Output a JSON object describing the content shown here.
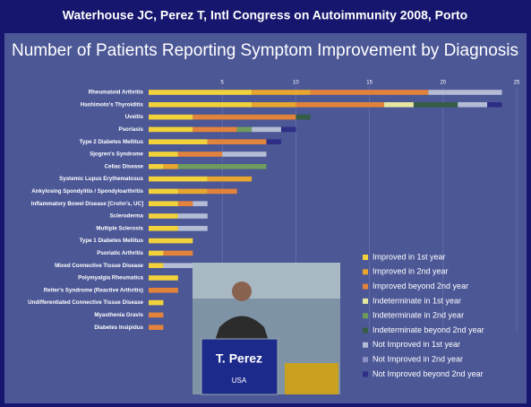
{
  "header": "Waterhouse JC, Perez T,   Intl Congress on Autoimmunity 2008, Porto",
  "chart_data": {
    "type": "bar",
    "orientation": "horizontal",
    "stacked": true,
    "title": "Number of Patients Reporting Symptom Improvement by Diagnosis",
    "categories": [
      "Rheumatoid Arthritis",
      "Hashimoto's Thyroiditis",
      "Uveitis",
      "Psoriasis",
      "Type 2 Diabetes Mellitus",
      "Sjogren's Syndrome",
      "Celiac Disease",
      "Systemic Lupus Erythematosus",
      "Ankylosing Spondylitis / Spondyloarthritis",
      "Inflammatory Bowel Disease [Crohn's, UC]",
      "Scleroderma",
      "Multiple Sclerosis",
      "Type 1 Diabetes Mellitus",
      "Psoriatic Arthritis",
      "Mixed Connective Tissue Disease",
      "Polymyalgia Rheumatica",
      "Reiter's Syndrome (Reactive Arthritis)",
      "Undifferentiated Connective Tissue Disease",
      "Myasthenia Gravis",
      "Diabetes Insipidus"
    ],
    "series": [
      {
        "name": "Improved in 1st year",
        "color": "#f2d23a",
        "values": [
          7,
          7,
          3,
          3,
          4,
          2,
          1,
          4,
          2,
          2,
          2,
          2,
          3,
          1,
          1,
          2,
          0,
          1,
          0,
          0
        ]
      },
      {
        "name": "Improved in 2nd year",
        "color": "#e8a62e",
        "values": [
          4,
          3,
          0,
          0,
          0,
          0,
          1,
          3,
          2,
          0,
          0,
          0,
          0,
          0,
          0,
          0,
          0,
          0,
          0,
          0
        ]
      },
      {
        "name": "Improved beyond 2nd year",
        "color": "#e2833c",
        "values": [
          8,
          6,
          7,
          3,
          4,
          3,
          0,
          0,
          2,
          1,
          0,
          0,
          0,
          2,
          0,
          0,
          2,
          0,
          1,
          1
        ]
      },
      {
        "name": "Indeterminate in 1st year",
        "color": "#e6e8a0",
        "values": [
          0,
          2,
          0,
          0,
          0,
          0,
          0,
          0,
          0,
          0,
          0,
          0,
          0,
          0,
          0,
          0,
          0,
          0,
          0,
          0
        ]
      },
      {
        "name": "Indeterminate in 2nd year",
        "color": "#6e9c5c",
        "values": [
          0,
          0,
          0,
          1,
          0,
          0,
          6,
          0,
          0,
          0,
          0,
          0,
          0,
          0,
          0,
          0,
          0,
          0,
          0,
          0
        ]
      },
      {
        "name": "Indeterminate beyond 2nd year",
        "color": "#355e44",
        "values": [
          0,
          3,
          1,
          0,
          0,
          0,
          0,
          0,
          0,
          0,
          0,
          0,
          0,
          0,
          0,
          0,
          0,
          0,
          0,
          0
        ]
      },
      {
        "name": "Not Improved in 1st year",
        "color": "#b4bbd4",
        "values": [
          5,
          2,
          0,
          2,
          0,
          3,
          0,
          0,
          0,
          1,
          2,
          2,
          0,
          0,
          2,
          0,
          0,
          0,
          0,
          0
        ]
      },
      {
        "name": "Not Improved in 2nd year",
        "color": "#8a8fc4",
        "values": [
          0,
          0,
          0,
          0,
          0,
          0,
          0,
          0,
          0,
          0,
          0,
          0,
          0,
          0,
          0,
          0,
          0,
          0,
          0,
          0
        ]
      },
      {
        "name": "Not Improved beyond 2nd year",
        "color": "#2e2e86",
        "values": [
          0,
          1,
          0,
          1,
          1,
          0,
          0,
          0,
          0,
          0,
          0,
          0,
          0,
          0,
          0,
          0,
          0,
          0,
          0,
          0
        ]
      }
    ],
    "xlim": [
      0,
      25
    ],
    "xticks": [
      5,
      10,
      15,
      20,
      25
    ],
    "grid": true
  },
  "speaker": {
    "name": "T. Perez",
    "country": "USA"
  }
}
